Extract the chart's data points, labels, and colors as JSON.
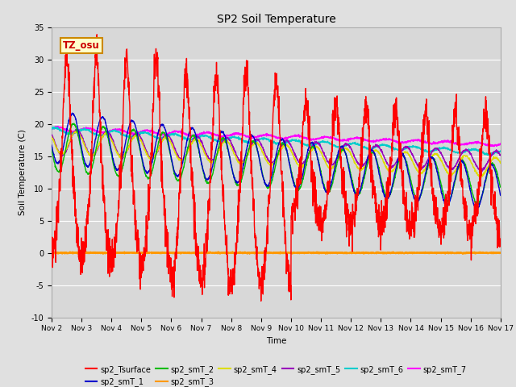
{
  "title": "SP2 Soil Temperature",
  "ylabel": "Soil Temperature (C)",
  "xlabel": "Time",
  "tz_label": "TZ_osu",
  "ylim": [
    -10,
    35
  ],
  "xlim": [
    0,
    15
  ],
  "background_color": "#e0e0e0",
  "plot_bg_color": "#d8d8d8",
  "series_colors": {
    "sp2_Tsurface": "#ff0000",
    "sp2_smT_1": "#0000cc",
    "sp2_smT_2": "#00bb00",
    "sp2_smT_3": "#ff9900",
    "sp2_smT_4": "#dddd00",
    "sp2_smT_5": "#9900bb",
    "sp2_smT_6": "#00cccc",
    "sp2_smT_7": "#ff00ff"
  },
  "xtick_labels": [
    "Nov 2",
    "Nov 3",
    "Nov 4",
    "Nov 5",
    "Nov 6",
    "Nov 7",
    "Nov 8",
    "Nov 9",
    "Nov 10",
    "Nov 11",
    "Nov 12",
    "Nov 13",
    "Nov 14",
    "Nov 15",
    "Nov 16",
    "Nov 17"
  ],
  "ytick_values": [
    -10,
    -5,
    0,
    5,
    10,
    15,
    20,
    25,
    30,
    35
  ],
  "grid_color": "#ffffff",
  "n_days": 15
}
